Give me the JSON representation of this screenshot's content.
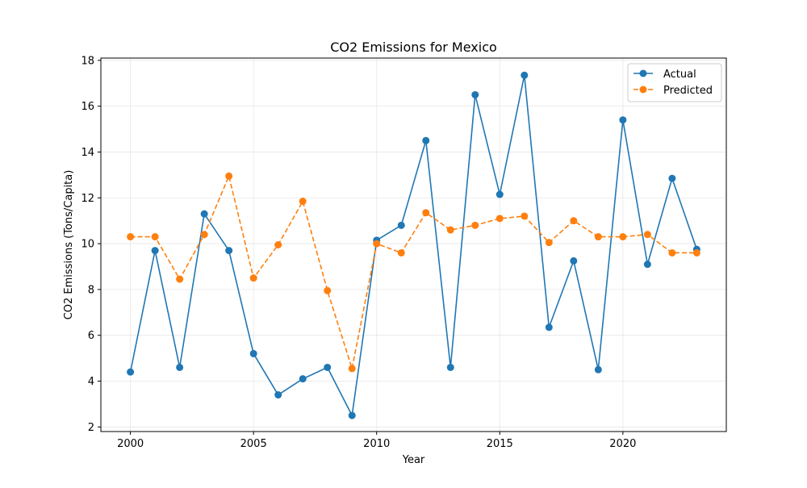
{
  "chart_data": {
    "type": "line",
    "title": "CO2 Emissions for Mexico",
    "xlabel": "Year",
    "ylabel": "CO2 Emissions (Tons/Capita)",
    "xlim": [
      1998.8,
      2024.2
    ],
    "ylim": [
      1.8,
      18.1
    ],
    "xticks": [
      2000,
      2005,
      2010,
      2015,
      2020
    ],
    "yticks": [
      2,
      4,
      6,
      8,
      10,
      12,
      14,
      16,
      18
    ],
    "grid": true,
    "legend_position": "top-right",
    "x": [
      2000,
      2001,
      2002,
      2003,
      2004,
      2005,
      2006,
      2007,
      2008,
      2009,
      2010,
      2011,
      2012,
      2013,
      2014,
      2015,
      2016,
      2017,
      2018,
      2019,
      2020,
      2021,
      2022,
      2023
    ],
    "series": [
      {
        "name": "Actual",
        "color": "#1f77b4",
        "line_style": "solid",
        "marker": "circle",
        "values": [
          4.4,
          9.7,
          4.6,
          11.3,
          9.7,
          5.2,
          3.4,
          4.1,
          4.6,
          2.5,
          10.15,
          10.8,
          14.5,
          4.6,
          16.5,
          12.15,
          17.35,
          6.35,
          9.25,
          4.5,
          15.4,
          9.1,
          12.85,
          9.75
        ]
      },
      {
        "name": "Predicted",
        "color": "#ff7f0e",
        "line_style": "dashed",
        "marker": "circle",
        "values": [
          10.3,
          10.3,
          8.45,
          10.4,
          12.95,
          8.5,
          9.95,
          11.85,
          7.95,
          4.55,
          10.0,
          9.6,
          11.35,
          10.6,
          10.8,
          11.1,
          11.2,
          10.05,
          11.0,
          10.3,
          10.3,
          10.4,
          9.6,
          9.6
        ]
      }
    ]
  }
}
